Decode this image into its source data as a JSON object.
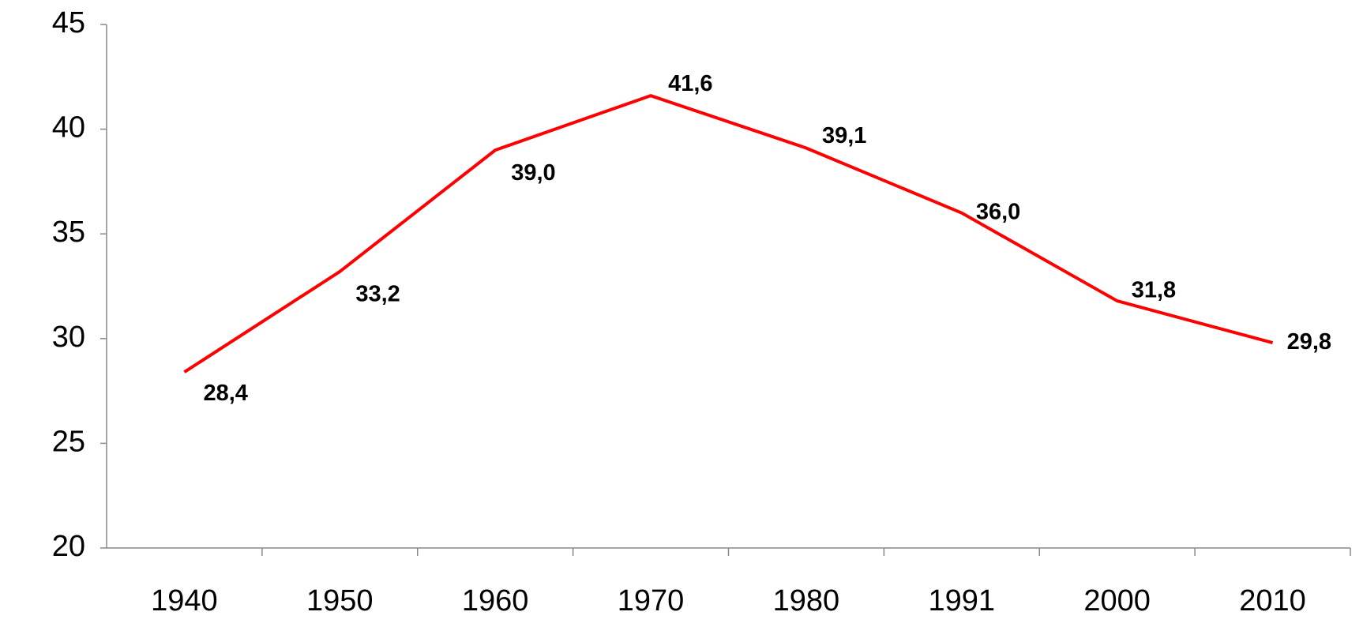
{
  "chart_data": {
    "type": "line",
    "categories": [
      "1940",
      "1950",
      "1960",
      "1970",
      "1980",
      "1991",
      "2000",
      "2010"
    ],
    "series": [
      {
        "color": "#ff0000",
        "values": [
          28.4,
          33.2,
          39.0,
          41.6,
          39.1,
          36.0,
          31.8,
          29.8
        ],
        "value_labels": [
          "28,4",
          "33,2",
          "39,0",
          "41,6",
          "39,1",
          "36,0",
          "31,8",
          "29,8"
        ]
      }
    ],
    "ylim": [
      20,
      45
    ],
    "yticks": [
      20,
      25,
      30,
      35,
      40,
      45
    ],
    "grid": false
  }
}
